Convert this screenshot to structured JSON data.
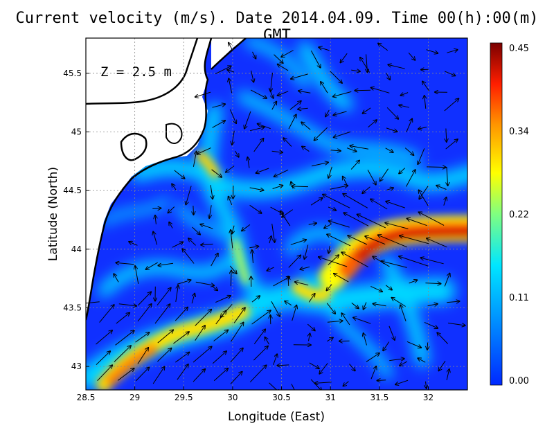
{
  "title": "Current velocity (m/s). Date 2014.04.09. Time 00(h):00(m) GMT",
  "depth_label": "Z = 2.5 m",
  "axes": {
    "xlabel": "Longitude (East)",
    "ylabel": "Latitude (North)",
    "xlim": [
      28.5,
      32.4
    ],
    "ylim": [
      42.8,
      45.8
    ],
    "xticks": [
      "28.5",
      "29",
      "29.5",
      "30",
      "30.5",
      "31",
      "31.5",
      "32"
    ],
    "yticks": [
      "43",
      "43.5",
      "44",
      "44.5",
      "45",
      "45.5"
    ],
    "grid": true
  },
  "colorbar": {
    "ticks": [
      "0.45",
      "0.34",
      "0.22",
      "0.11",
      "0.00"
    ],
    "range": [
      0.0,
      0.45
    ]
  },
  "colors": {
    "low": "#0000ff",
    "mid_low": "#00c8ff",
    "mid": "#ffff00",
    "mid_high": "#ff7f00",
    "high": "#800000",
    "land": "#ffffff",
    "coast": "#000000"
  }
}
